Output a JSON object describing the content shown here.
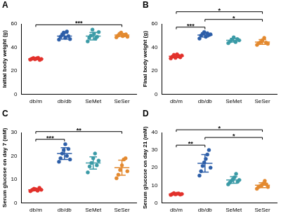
{
  "chart_data": [
    {
      "type": "scatter",
      "title": "A",
      "y_label": "Initial body weight (g)",
      "categories": [
        "db/m",
        "db/db",
        "SeMet",
        "SeSer"
      ],
      "colors": [
        "#e2312b",
        "#2c5ea8",
        "#3a9aa6",
        "#e3892f"
      ],
      "values": [
        [
          29.5,
          30.2,
          30.8,
          29.8,
          30.5,
          31.0,
          29.2,
          30.0
        ],
        [
          46.5,
          49.0,
          50.5,
          52.5,
          48.0,
          53.5,
          49.5,
          47.0
        ],
        [
          45.0,
          48.0,
          50.0,
          55.0,
          51.5,
          47.5,
          49.0,
          53.0
        ],
        [
          48.5,
          50.0,
          51.5,
          52.5,
          49.5,
          50.5,
          51.0,
          49.0
        ]
      ],
      "mean": [
        30.1,
        49.5,
        49.5,
        50.5
      ],
      "sd": [
        0.6,
        2.5,
        3.2,
        1.3
      ],
      "comparisons": [
        {
          "from": "db/m",
          "to": "SeSer",
          "label": "***"
        }
      ],
      "ylim": [
        0,
        60
      ],
      "yticks": [
        0,
        20,
        40,
        60
      ],
      "grid": false
    },
    {
      "type": "scatter",
      "title": "B",
      "y_label": "Final body weight (g)",
      "categories": [
        "db/m",
        "db/db",
        "SeMet",
        "SeSer"
      ],
      "colors": [
        "#e2312b",
        "#2c5ea8",
        "#3a9aa6",
        "#e3892f"
      ],
      "values": [
        [
          30.5,
          32.0,
          33.5,
          31.0,
          34.0,
          32.5,
          31.5,
          33.0
        ],
        [
          47.5,
          50.0,
          51.5,
          53.0,
          49.0,
          52.0,
          50.5,
          51.0
        ],
        [
          43.5,
          45.0,
          46.5,
          48.5,
          44.5,
          47.0,
          46.0
        ],
        [
          42.0,
          43.5,
          44.5,
          46.0,
          48.0,
          44.0,
          43.0
        ]
      ],
      "mean": [
        32.3,
        50.5,
        46.0,
        44.5
      ],
      "sd": [
        1.2,
        1.7,
        1.6,
        2.0
      ],
      "comparisons": [
        {
          "from": "db/m",
          "to": "db/db",
          "label": "***"
        },
        {
          "from": "db/db",
          "to": "SeSer",
          "label": "*"
        },
        {
          "from": "db/m",
          "to": "SeSer",
          "label": "*"
        }
      ],
      "ylim": [
        0,
        60
      ],
      "yticks": [
        0,
        20,
        40,
        60
      ],
      "grid": false
    },
    {
      "type": "scatter",
      "title": "C",
      "y_label": "Serum glucose on day 7 (mM)",
      "categories": [
        "db/m",
        "db/db",
        "SeMet",
        "SeSer"
      ],
      "colors": [
        "#e2312b",
        "#2c5ea8",
        "#3a9aa6",
        "#e3892f"
      ],
      "values": [
        [
          5.0,
          5.5,
          6.0,
          5.8,
          5.2,
          6.4,
          5.6
        ],
        [
          17.5,
          19.0,
          21.0,
          22.5,
          25.0,
          20.0,
          23.0,
          18.5
        ],
        [
          13.0,
          15.5,
          17.0,
          19.0,
          21.0,
          16.0,
          18.0
        ],
        [
          10.5,
          12.0,
          14.0,
          16.0,
          18.5,
          19.0,
          13.5
        ]
      ],
      "mean": [
        5.6,
        21.0,
        17.0,
        15.0
      ],
      "sd": [
        0.5,
        2.5,
        2.6,
        3.2
      ],
      "comparisons": [
        {
          "from": "db/m",
          "to": "db/db",
          "label": "***"
        },
        {
          "from": "db/m",
          "to": "SeSer",
          "label": "**"
        }
      ],
      "ylim": [
        0,
        30
      ],
      "yticks": [
        0,
        10,
        20,
        30
      ],
      "grid": false
    },
    {
      "type": "scatter",
      "title": "D",
      "y_label": "Serum glucose on day 21 (mM)",
      "categories": [
        "db/m",
        "db/db",
        "SeMet",
        "SeSer"
      ],
      "colors": [
        "#e2312b",
        "#2c5ea8",
        "#3a9aa6",
        "#e3892f"
      ],
      "values": [
        [
          4.5,
          5.0,
          5.5,
          4.8,
          5.2,
          5.3,
          4.7,
          5.0
        ],
        [
          15.5,
          18.0,
          21.0,
          23.0,
          25.0,
          27.5,
          30.0,
          20.0
        ],
        [
          10.5,
          11.5,
          12.5,
          13.5,
          14.5,
          16.5,
          12.0,
          13.0
        ],
        [
          8.0,
          9.0,
          9.5,
          10.0,
          11.0,
          12.5,
          10.5,
          9.0
        ]
      ],
      "mean": [
        5.0,
        22.5,
        13.0,
        10.0
      ],
      "sd": [
        0.3,
        5.0,
        1.9,
        1.4
      ],
      "comparisons": [
        {
          "from": "db/m",
          "to": "db/db",
          "label": "**"
        },
        {
          "from": "db/db",
          "to": "SeSer",
          "label": "*"
        },
        {
          "from": "db/m",
          "to": "SeSer",
          "label": "*"
        }
      ],
      "ylim": [
        0,
        40
      ],
      "yticks": [
        0,
        10,
        20,
        30,
        40
      ],
      "grid": false
    }
  ]
}
